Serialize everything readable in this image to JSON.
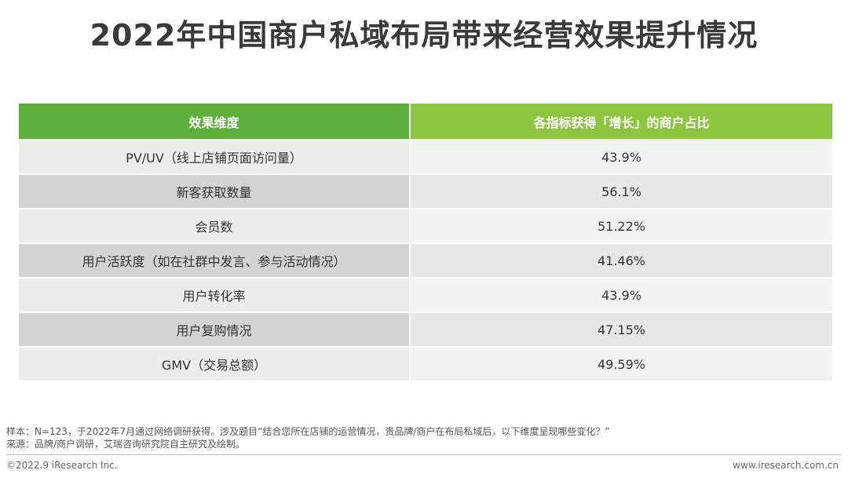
{
  "title": "2022年中国商户私域布局带来经营效果提升情况",
  "table": {
    "headers": [
      "效果维度",
      "各指标获得「增长」的商户占比"
    ],
    "rows": [
      {
        "dimension": "PV/UV（线上店铺页面访问量）",
        "value": "43.9%"
      },
      {
        "dimension": "新客获取数量",
        "value": "56.1%"
      },
      {
        "dimension": "会员数",
        "value": "51.22%"
      },
      {
        "dimension": "用户活跃度（如在社群中发言、参与活动情况）",
        "value": "41.46%"
      },
      {
        "dimension": "用户转化率",
        "value": "43.9%"
      },
      {
        "dimension": "用户复购情况",
        "value": "47.15%"
      },
      {
        "dimension": "GMV（交易总额）",
        "value": "49.59%"
      }
    ]
  },
  "footnote": {
    "sample": "样本：N=123，于2022年7月通过网络调研获得。涉及题目“结合您所在店铺的运营情况，贵品牌/商户在布局私域后，以下维度呈现哪些变化？”",
    "source": "来源：品牌/商户调研，艾瑞咨询研究院自主研究及绘制。"
  },
  "footer": {
    "copyright": "©2022.9 iResearch Inc.",
    "website": "www.iresearch.com.cn"
  },
  "colors": {
    "header_left": "#5daf3b",
    "header_right": "#8cc63e"
  }
}
